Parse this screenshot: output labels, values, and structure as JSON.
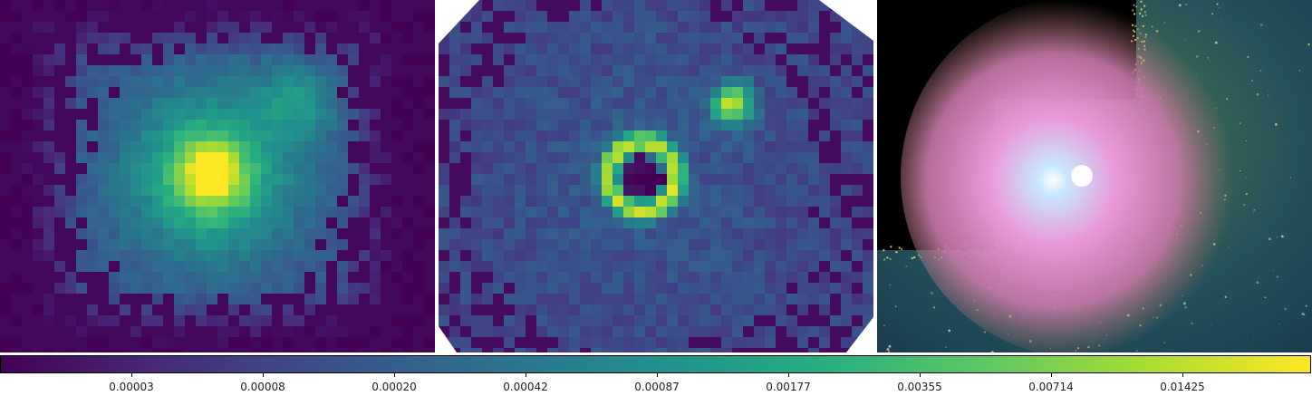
{
  "panels": [
    {
      "label": "left-map",
      "kind": "intensity-map",
      "peak": "center"
    },
    {
      "label": "middle-map",
      "kind": "residual-map",
      "features": [
        "ring",
        "blob"
      ]
    },
    {
      "label": "right-image",
      "kind": "rgb-galaxy-image"
    }
  ],
  "chart_data": {
    "type": "heatmap",
    "colormap": "viridis",
    "scale": "log",
    "colorbar": {
      "orientation": "horizontal",
      "tick_labels": [
        "0.00003",
        "0.00008",
        "0.00020",
        "0.00042",
        "0.00087",
        "0.00177",
        "0.00355",
        "0.00714",
        "0.01425"
      ],
      "tick_values": [
        3e-05,
        8e-05,
        0.0002,
        0.00042,
        0.00087,
        0.00177,
        0.00355,
        0.00714,
        0.01425
      ]
    }
  },
  "colors": {
    "viridis": [
      "#440154",
      "#472c7a",
      "#3b518b",
      "#2c718e",
      "#21908d",
      "#27ad81",
      "#5cc863",
      "#aadc32",
      "#fde725"
    ]
  }
}
